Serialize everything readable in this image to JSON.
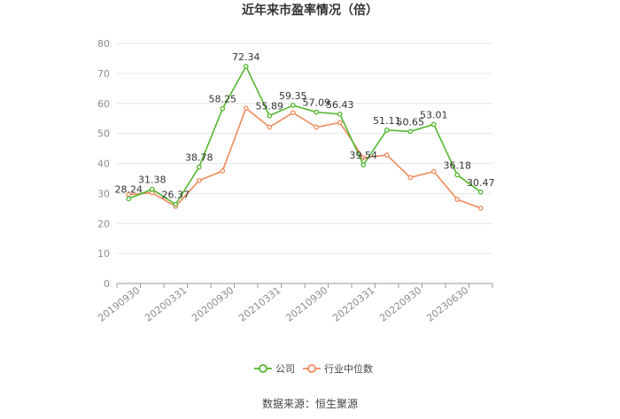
{
  "chart_data": {
    "type": "line",
    "title": "近年来市盈率情况（倍）",
    "xlabel": "",
    "ylabel": "",
    "ylim": [
      0,
      80
    ],
    "yticks": [
      0,
      10,
      20,
      30,
      40,
      50,
      60,
      70,
      80
    ],
    "grid": "horizontal",
    "legend_position": "bottom",
    "x_tick_labels": [
      "20190930",
      "20200331",
      "20200930",
      "20210331",
      "20210930",
      "20220331",
      "20220930",
      "20230630"
    ],
    "series": [
      {
        "name": "公司",
        "color": "#52b72e",
        "values": [
          28.24,
          31.38,
          26.37,
          38.78,
          58.25,
          72.34,
          55.89,
          59.35,
          57.09,
          56.43,
          39.54,
          51.11,
          50.65,
          53.01,
          36.18,
          30.47
        ],
        "labels_shown": true
      },
      {
        "name": "行业中位数",
        "color": "#ef8a5a",
        "values": [
          29.6,
          30.2,
          25.7,
          34.3,
          37.5,
          58.4,
          52.1,
          56.9,
          52.1,
          53.6,
          41.9,
          42.8,
          35.3,
          37.3,
          28.0,
          25.1
        ],
        "labels_shown": false
      }
    ]
  },
  "source_text": "数据来源：恒生聚源"
}
